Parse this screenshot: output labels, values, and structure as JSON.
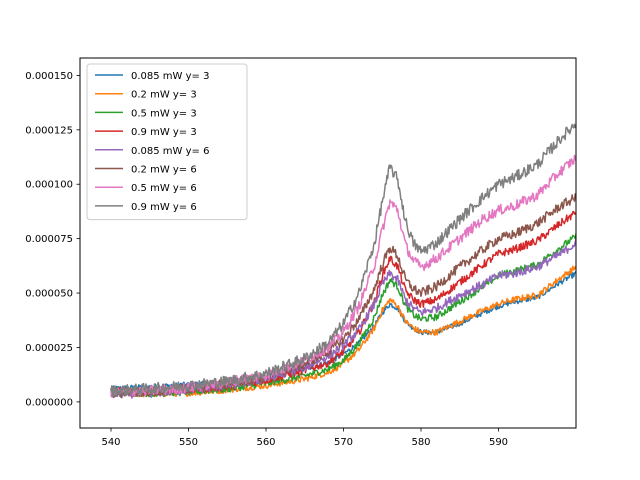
{
  "chart_data": {
    "type": "line",
    "title": "",
    "xlabel": "",
    "ylabel": "",
    "xlim": [
      536,
      600
    ],
    "ylim": [
      -1.2e-05,
      0.000158
    ],
    "xticks": [
      540,
      550,
      560,
      570,
      580,
      590
    ],
    "xtick_labels": [
      "540",
      "550",
      "560",
      "570",
      "580",
      "590"
    ],
    "yticks": [
      0,
      2.5e-05,
      5e-05,
      7.5e-05,
      0.0001,
      0.000125,
      0.00015
    ],
    "ytick_labels": [
      "0.000000",
      "0.000025",
      "0.000050",
      "0.000075",
      "0.000100",
      "0.000125",
      "0.000150"
    ],
    "grid": false,
    "legend_position": "top-left",
    "x_range": [
      540,
      600
    ],
    "series": [
      {
        "name": "0.085 mW y= 3",
        "color": "#1f77b4",
        "points": [
          [
            540,
            6e-06
          ],
          [
            545,
            7e-06
          ],
          [
            550,
            8e-06
          ],
          [
            555,
            9e-06
          ],
          [
            560,
            1.15e-05
          ],
          [
            565,
            1.5e-05
          ],
          [
            568,
            1.8e-05
          ],
          [
            570,
            2.2e-05
          ],
          [
            572,
            2.7e-05
          ],
          [
            574,
            3.5e-05
          ],
          [
            575,
            4.1e-05
          ],
          [
            576,
            4.5e-05
          ],
          [
            577,
            4.3e-05
          ],
          [
            578,
            3.7e-05
          ],
          [
            579,
            3.4e-05
          ],
          [
            580,
            3.2e-05
          ],
          [
            582,
            3.2e-05
          ],
          [
            585,
            3.6e-05
          ],
          [
            588,
            4.1e-05
          ],
          [
            590,
            4.4e-05
          ],
          [
            592,
            4.6e-05
          ],
          [
            595,
            4.8e-05
          ],
          [
            598,
            5.5e-05
          ],
          [
            600,
            5.9e-05
          ]
        ]
      },
      {
        "name": "0.2 mW y= 3",
        "color": "#ff7f0e",
        "points": [
          [
            540,
            4e-06
          ],
          [
            545,
            3.5e-06
          ],
          [
            550,
            4e-06
          ],
          [
            555,
            5.5e-06
          ],
          [
            560,
            7.5e-06
          ],
          [
            565,
            1.05e-05
          ],
          [
            568,
            1.35e-05
          ],
          [
            570,
            1.75e-05
          ],
          [
            572,
            2.4e-05
          ],
          [
            574,
            3.4e-05
          ],
          [
            575,
            4.2e-05
          ],
          [
            576,
            4.7e-05
          ],
          [
            577,
            4.4e-05
          ],
          [
            578,
            3.7e-05
          ],
          [
            579,
            3.4e-05
          ],
          [
            580,
            3.2e-05
          ],
          [
            582,
            3.2e-05
          ],
          [
            585,
            3.7e-05
          ],
          [
            588,
            4.2e-05
          ],
          [
            590,
            4.5e-05
          ],
          [
            592,
            4.7e-05
          ],
          [
            595,
            4.9e-05
          ],
          [
            598,
            5.7e-05
          ],
          [
            600,
            6.2e-05
          ]
        ]
      },
      {
        "name": "0.5 mW y= 3",
        "color": "#2ca02c",
        "points": [
          [
            540,
            4.5e-06
          ],
          [
            545,
            4e-06
          ],
          [
            550,
            4.5e-06
          ],
          [
            555,
            6e-06
          ],
          [
            560,
            8.5e-06
          ],
          [
            565,
            1.2e-05
          ],
          [
            568,
            1.5e-05
          ],
          [
            570,
            1.9e-05
          ],
          [
            572,
            2.7e-05
          ],
          [
            574,
            3.9e-05
          ],
          [
            575,
            4.9e-05
          ],
          [
            576,
            5.6e-05
          ],
          [
            577,
            5.3e-05
          ],
          [
            578,
            4.4e-05
          ],
          [
            579,
            4e-05
          ],
          [
            580,
            3.8e-05
          ],
          [
            582,
            3.9e-05
          ],
          [
            585,
            4.6e-05
          ],
          [
            588,
            5.3e-05
          ],
          [
            590,
            5.8e-05
          ],
          [
            592,
            6e-05
          ],
          [
            595,
            6.3e-05
          ],
          [
            598,
            7.1e-05
          ],
          [
            600,
            7.6e-05
          ]
        ]
      },
      {
        "name": "0.9 mW y= 3",
        "color": "#d62728",
        "points": [
          [
            540,
            5e-06
          ],
          [
            545,
            4.5e-06
          ],
          [
            550,
            5.5e-06
          ],
          [
            555,
            7e-06
          ],
          [
            560,
            1e-05
          ],
          [
            565,
            1.45e-05
          ],
          [
            568,
            1.8e-05
          ],
          [
            570,
            2.3e-05
          ],
          [
            572,
            3.2e-05
          ],
          [
            574,
            4.6e-05
          ],
          [
            575,
            5.8e-05
          ],
          [
            576,
            6.6e-05
          ],
          [
            577,
            6.2e-05
          ],
          [
            578,
            5.1e-05
          ],
          [
            579,
            4.7e-05
          ],
          [
            580,
            4.5e-05
          ],
          [
            582,
            4.7e-05
          ],
          [
            585,
            5.5e-05
          ],
          [
            588,
            6.3e-05
          ],
          [
            590,
            6.8e-05
          ],
          [
            592,
            7e-05
          ],
          [
            595,
            7.4e-05
          ],
          [
            598,
            8.2e-05
          ],
          [
            600,
            8.7e-05
          ]
        ]
      },
      {
        "name": "0.085 mW y= 6",
        "color": "#9467bd",
        "points": [
          [
            540,
            3.5e-06
          ],
          [
            545,
            4e-06
          ],
          [
            550,
            5.5e-06
          ],
          [
            555,
            7.5e-06
          ],
          [
            560,
            1.05e-05
          ],
          [
            565,
            1.6e-05
          ],
          [
            568,
            2.1e-05
          ],
          [
            570,
            2.6e-05
          ],
          [
            572,
            3.3e-05
          ],
          [
            574,
            4.5e-05
          ],
          [
            575,
            5.4e-05
          ],
          [
            576,
            5.9e-05
          ],
          [
            577,
            5.6e-05
          ],
          [
            578,
            4.7e-05
          ],
          [
            579,
            4.3e-05
          ],
          [
            580,
            4.1e-05
          ],
          [
            582,
            4.3e-05
          ],
          [
            585,
            4.9e-05
          ],
          [
            588,
            5.4e-05
          ],
          [
            590,
            5.8e-05
          ],
          [
            592,
            5.9e-05
          ],
          [
            595,
            6.2e-05
          ],
          [
            598,
            6.8e-05
          ],
          [
            600,
            7.3e-05
          ]
        ]
      },
      {
        "name": "0.2 mW y= 6",
        "color": "#8c564b",
        "points": [
          [
            540,
            4e-06
          ],
          [
            545,
            5e-06
          ],
          [
            550,
            6e-06
          ],
          [
            555,
            8.5e-06
          ],
          [
            560,
            1.15e-05
          ],
          [
            565,
            1.75e-05
          ],
          [
            568,
            2.3e-05
          ],
          [
            570,
            2.9e-05
          ],
          [
            572,
            3.8e-05
          ],
          [
            574,
            5.2e-05
          ],
          [
            575,
            6.3e-05
          ],
          [
            576,
            7.1e-05
          ],
          [
            577,
            6.7e-05
          ],
          [
            578,
            5.6e-05
          ],
          [
            579,
            5.2e-05
          ],
          [
            580,
            5e-05
          ],
          [
            582,
            5.3e-05
          ],
          [
            585,
            6.2e-05
          ],
          [
            588,
            7e-05
          ],
          [
            590,
            7.5e-05
          ],
          [
            592,
            7.7e-05
          ],
          [
            595,
            8.2e-05
          ],
          [
            598,
            9e-05
          ],
          [
            600,
            9.4e-05
          ]
        ]
      },
      {
        "name": "0.5 mW y= 6",
        "color": "#e377c2",
        "points": [
          [
            540,
            4.5e-06
          ],
          [
            545,
            5e-06
          ],
          [
            550,
            6.5e-06
          ],
          [
            555,
            9e-06
          ],
          [
            560,
            1.25e-05
          ],
          [
            565,
            1.9e-05
          ],
          [
            568,
            2.5e-05
          ],
          [
            570,
            3.2e-05
          ],
          [
            572,
            4.4e-05
          ],
          [
            574,
            6.3e-05
          ],
          [
            575,
            7.9e-05
          ],
          [
            576,
            9.2e-05
          ],
          [
            577,
            8.8e-05
          ],
          [
            578,
            7.2e-05
          ],
          [
            579,
            6.5e-05
          ],
          [
            580,
            6.2e-05
          ],
          [
            582,
            6.6e-05
          ],
          [
            585,
            7.5e-05
          ],
          [
            588,
            8.4e-05
          ],
          [
            590,
            8.8e-05
          ],
          [
            592,
            9e-05
          ],
          [
            595,
            9.5e-05
          ],
          [
            598,
            0.000106
          ],
          [
            600,
            0.000112
          ]
        ]
      },
      {
        "name": "0.9 mW y= 6",
        "color": "#7f7f7f",
        "points": [
          [
            540,
            5e-06
          ],
          [
            545,
            6e-06
          ],
          [
            550,
            7.5e-06
          ],
          [
            555,
            9.5e-06
          ],
          [
            560,
            1.3e-05
          ],
          [
            565,
            2e-05
          ],
          [
            568,
            2.7e-05
          ],
          [
            570,
            3.6e-05
          ],
          [
            572,
            5e-05
          ],
          [
            574,
            7.3e-05
          ],
          [
            575,
            9.2e-05
          ],
          [
            576,
            0.000108
          ],
          [
            577,
            0.000102
          ],
          [
            578,
            8.3e-05
          ],
          [
            579,
            7.3e-05
          ],
          [
            580,
            6.9e-05
          ],
          [
            582,
            7.3e-05
          ],
          [
            585,
            8.4e-05
          ],
          [
            588,
            9.4e-05
          ],
          [
            590,
            0.0001
          ],
          [
            592,
            0.000103
          ],
          [
            595,
            0.000109
          ],
          [
            598,
            0.000121
          ],
          [
            600,
            0.000128
          ]
        ]
      }
    ]
  }
}
